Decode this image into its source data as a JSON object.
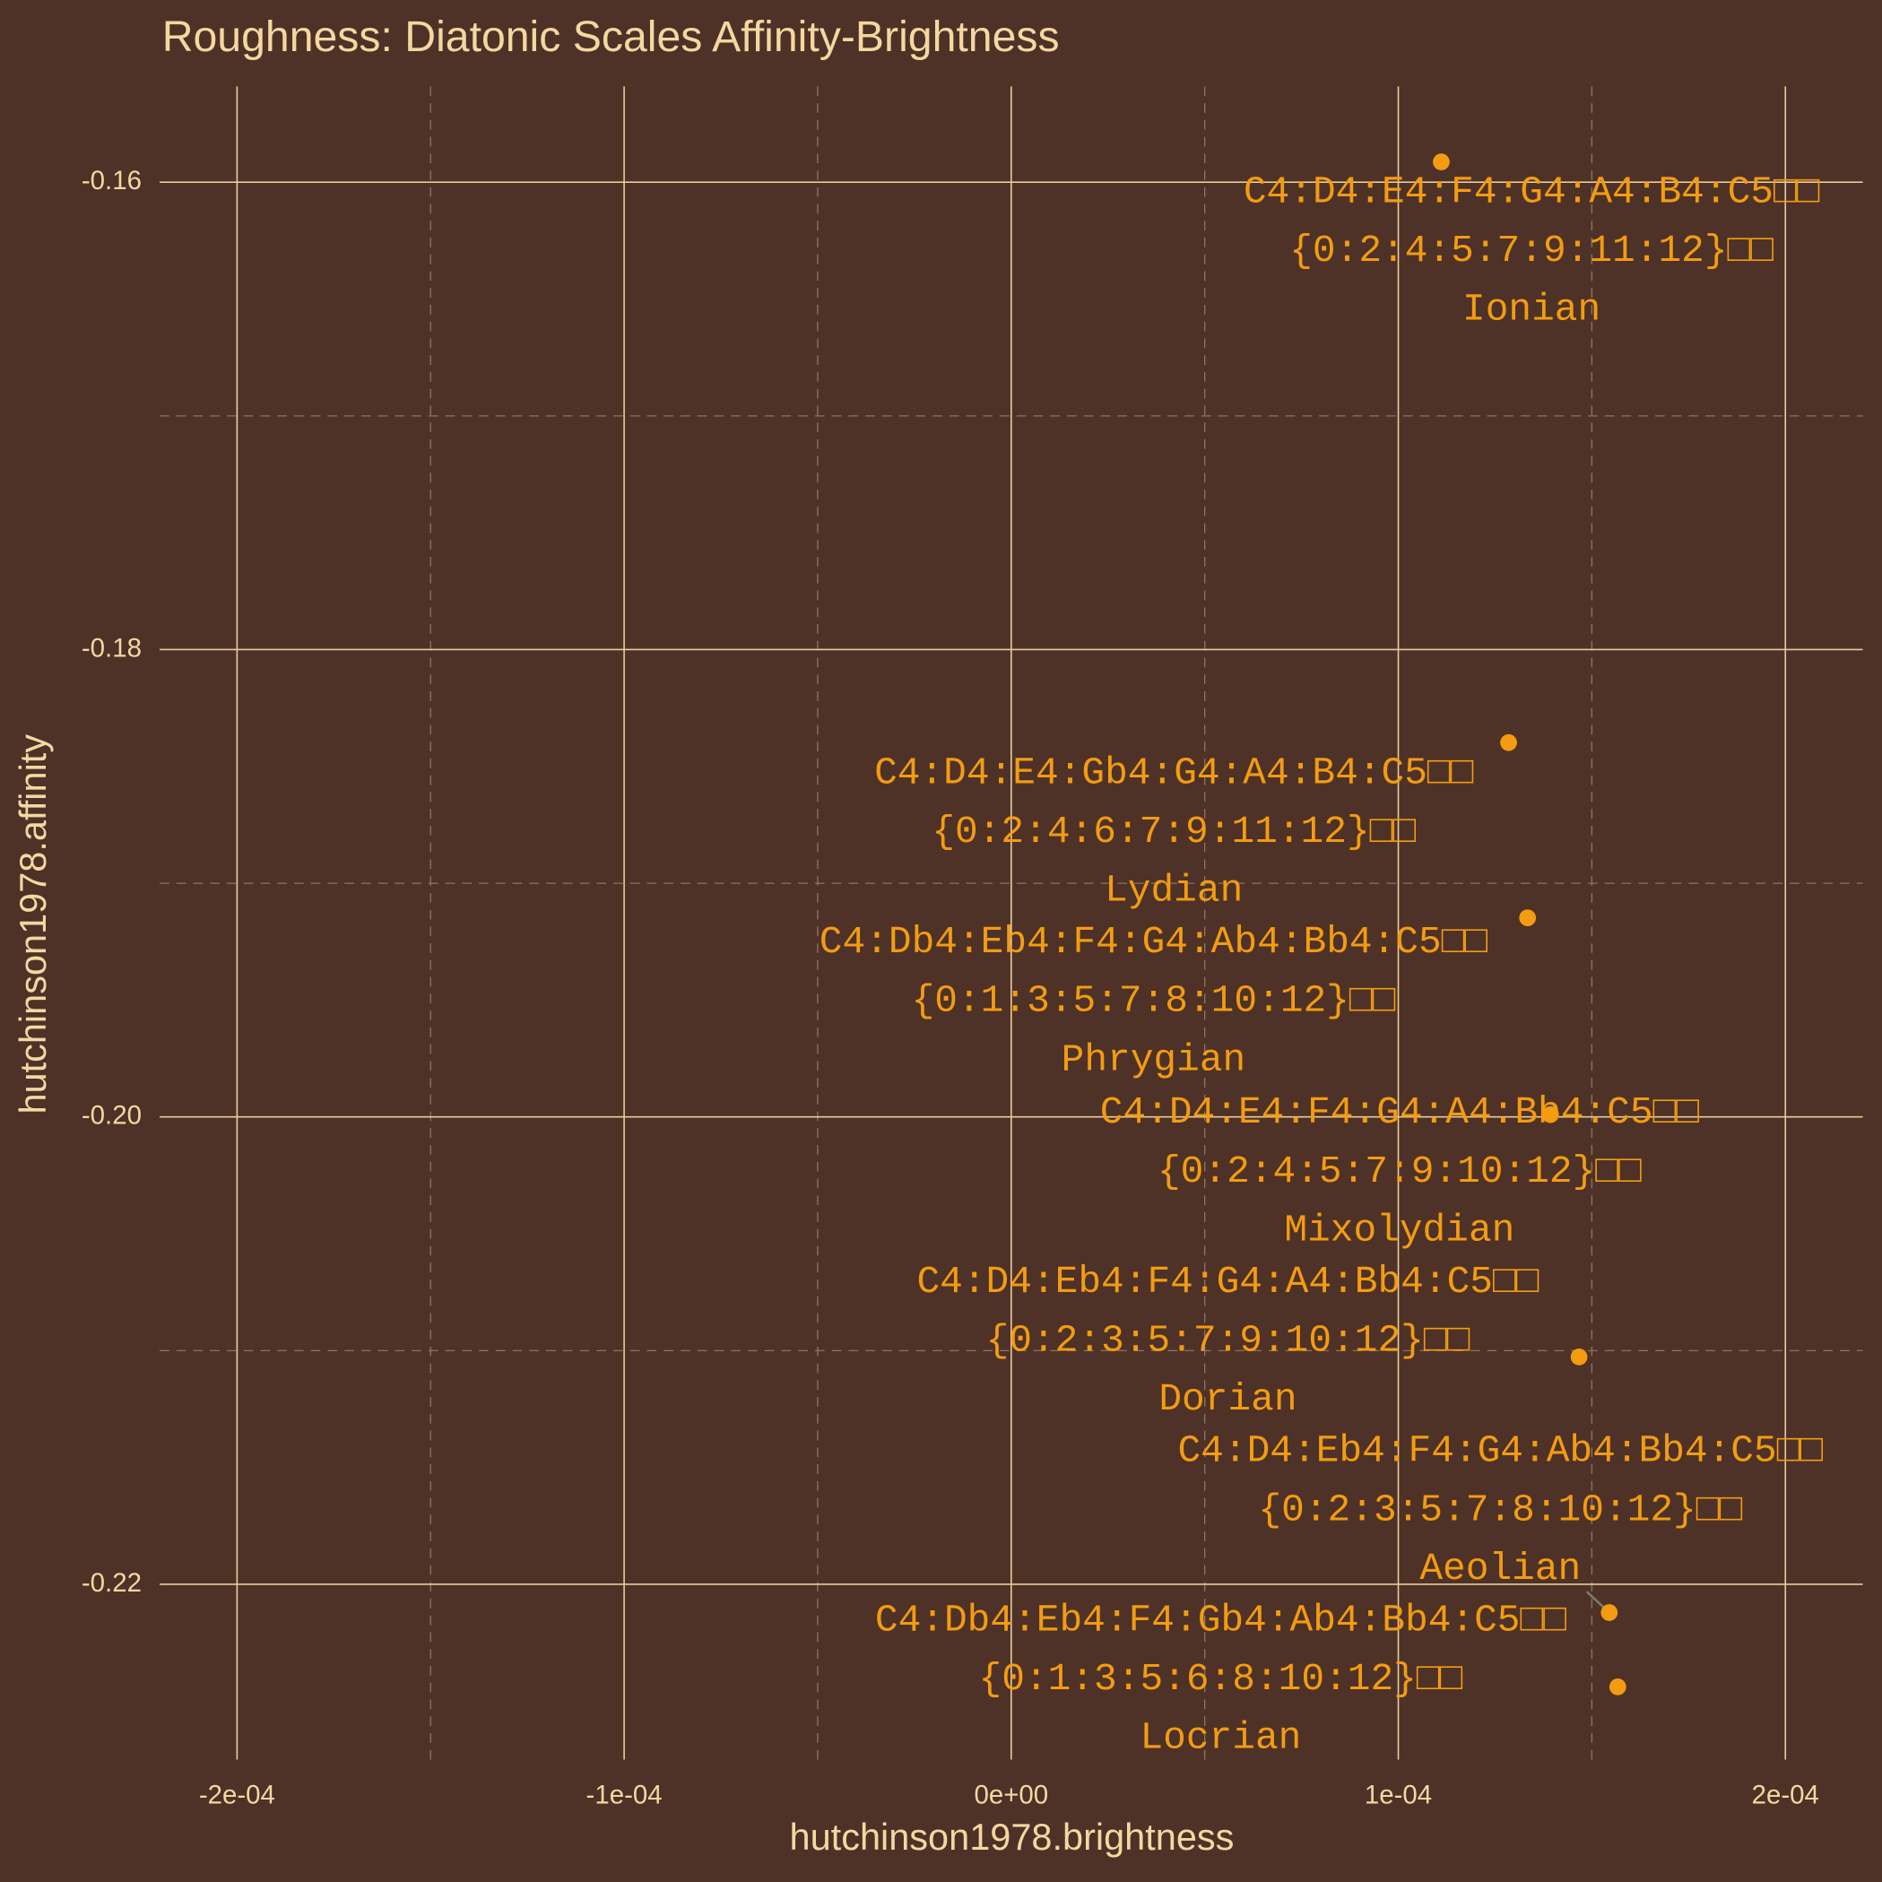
{
  "chart_data": {
    "type": "scatter",
    "title": "Roughness: Diatonic Scales Affinity-Brightness",
    "x_label": "hutchinson1978.brightness",
    "y_label": "hutchinson1978.affinity",
    "x": [
      0.0001111,
      0.0001285,
      0.0001334,
      0.0001393,
      0.0001467,
      0.0001545,
      0.0001567
    ],
    "values": [
      -0.15913,
      -0.18398,
      -0.19148,
      -0.1999,
      -0.21027,
      -0.22121,
      -0.22439
    ],
    "labels": [
      {
        "notes": "C4:D4:E4:F4:G4:A4:B4:C5□□",
        "pitch_classes": "{0:2:4:5:7:9:11:12}□□",
        "name": "Ionian"
      },
      {
        "notes": "C4:D4:E4:Gb4:G4:A4:B4:C5□□",
        "pitch_classes": "{0:2:4:6:7:9:11:12}□□",
        "name": "Lydian"
      },
      {
        "notes": "C4:Db4:Eb4:F4:G4:Ab4:Bb4:C5□□",
        "pitch_classes": "{0:1:3:5:7:8:10:12}□□",
        "name": "Phrygian"
      },
      {
        "notes": "C4:D4:E4:F4:G4:A4:Bb4:C5□□",
        "pitch_classes": "{0:2:4:5:7:9:10:12}□□",
        "name": "Mixolydian"
      },
      {
        "notes": "C4:D4:Eb4:F4:G4:A4:Bb4:C5□□",
        "pitch_classes": "{0:2:3:5:7:9:10:12}□□",
        "name": "Dorian"
      },
      {
        "notes": "C4:D4:Eb4:F4:G4:Ab4:Bb4:C5□□",
        "pitch_classes": "{0:2:3:5:7:8:10:12}□□",
        "name": "Aeolian"
      },
      {
        "notes": "C4:Db4:Eb4:F4:Gb4:Ab4:Bb4:C5□□",
        "pitch_classes": "{0:1:3:5:6:8:10:12}□□",
        "name": "Locrian"
      }
    ],
    "color": "#f39c12",
    "xlim": [
      -0.00022,
      0.00022
    ],
    "ylim": [
      -0.2275,
      -0.1559
    ],
    "xticks": [
      {
        "value": -0.0002,
        "label": "-2e-04"
      },
      {
        "value": -0.0001,
        "label": "-1e-04"
      },
      {
        "value": 0,
        "label": "0e+00"
      },
      {
        "value": 0.0001,
        "label": "1e-04"
      },
      {
        "value": 0.0002,
        "label": "2e-04"
      }
    ],
    "yticks": [
      -0.16,
      -0.18,
      {
        "value": -0.2,
        "label": "-0.20"
      },
      -0.22
    ],
    "x_minor_ticks": [
      -0.00015,
      -5e-05,
      5e-05,
      0.00015
    ],
    "y_minor_ticks": [
      -0.17,
      -0.19,
      -0.21
    ],
    "grid": true
  }
}
